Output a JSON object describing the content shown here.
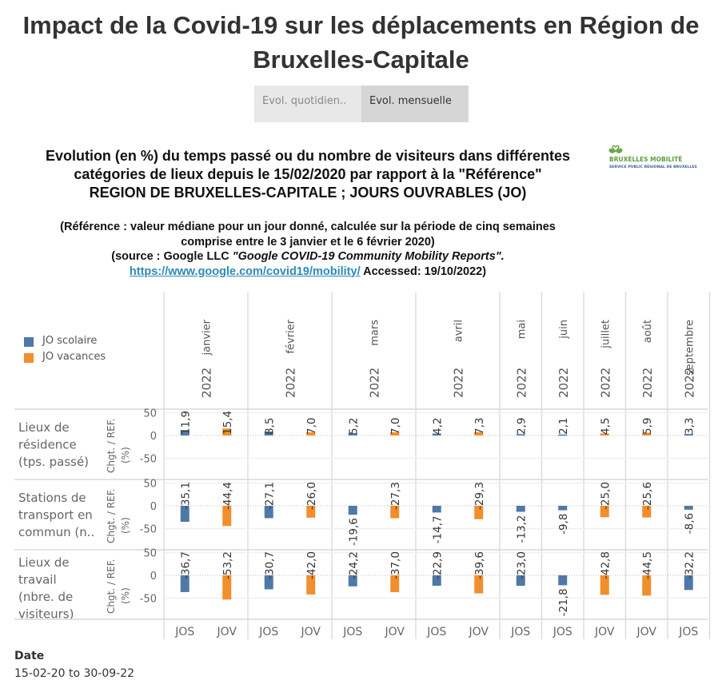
{
  "title": "Impact de la Covid-19 sur les déplacements en Région de Bruxelles-Capitale",
  "toggle": {
    "options": [
      "Evol. quotidien..",
      "Evol. mensuelle"
    ],
    "selected": "Evol. mensuelle"
  },
  "subtitle": [
    "Evolution (en %) du temps passé ou du nombre de visiteurs dans différentes",
    "catégories de lieux depuis le 15/02/2020 par rapport à la \"Référence\"",
    "REGION DE BRUXELLES-CAPITALE ; JOURS OUVRABLES (JO)"
  ],
  "note": {
    "line1": "(Référence : valeur médiane pour un jour donné, calculée sur la période de cinq semaines",
    "line2": "comprise entre le 3 janvier et le 6 février 2020)",
    "line3_prefix": "(source : Google LLC ",
    "line3_italic": "\"Google COVID-19 Community Mobility Reports\".",
    "link": "https://www.google.com/covid19/mobility/",
    "accessed": " Accessed: 19/10/2022)"
  },
  "logo": {
    "name": "BRUXELLES MOBILITÉ",
    "tagline": "SERVICE PUBLIC RÉGIONAL DE BRUXELLES"
  },
  "filter": {
    "label": "Date",
    "value": "15-02-20 to 30-09-22"
  },
  "chart_data": {
    "type": "bar",
    "legend": [
      {
        "name": "JO scolaire",
        "code": "JOS",
        "color": "#4e79a7"
      },
      {
        "name": "JO vacances",
        "code": "JOV",
        "color": "#f28e2b"
      }
    ],
    "legend_position": "top-left",
    "year": "2022",
    "months": [
      {
        "month": "janvier",
        "cols": [
          "JOS",
          "JOV"
        ]
      },
      {
        "month": "février",
        "cols": [
          "JOS",
          "JOV"
        ]
      },
      {
        "month": "mars",
        "cols": [
          "JOS",
          "JOV"
        ]
      },
      {
        "month": "avril",
        "cols": [
          "JOS",
          "JOV"
        ]
      },
      {
        "month": "mai",
        "cols": [
          "JOS"
        ]
      },
      {
        "month": "juin",
        "cols": [
          "JOS"
        ]
      },
      {
        "month": "juillet",
        "cols": [
          "JOV"
        ]
      },
      {
        "month": "août",
        "cols": [
          "JOV"
        ]
      },
      {
        "month": "septembre",
        "cols": [
          "JOS"
        ]
      }
    ],
    "ylabel": "Chgt. / REF. (%)",
    "yticks": [
      50,
      0,
      -50
    ],
    "rows": [
      {
        "label": [
          "Lieux de",
          "résidence",
          "(tps. passé)"
        ],
        "values": [
          11.9,
          15.4,
          8.5,
          7.0,
          5.2,
          7.0,
          4.2,
          7.3,
          2.9,
          2.1,
          4.5,
          5.9,
          3.3
        ],
        "labels": [
          "11,9",
          "15,4",
          "8,5",
          "7,0",
          "5,2",
          "7,0",
          "4,2",
          "7,3",
          "2,9",
          "2,1",
          "4,5",
          "5,9",
          "3,3"
        ]
      },
      {
        "label": [
          "Stations de",
          "transport en",
          "commun (n.."
        ],
        "values": [
          -35.1,
          -44.4,
          -27.1,
          -26.0,
          -19.6,
          -27.3,
          -14.7,
          -29.3,
          -13.2,
          -9.8,
          -25.0,
          -25.6,
          -8.6
        ],
        "labels": [
          "-35,1",
          "-44,4",
          "-27,1",
          "-26,0",
          "-19,6",
          "-27,3",
          "-14,7",
          "-29,3",
          "-13,2",
          "-9,8",
          "-25,0",
          "-25,6",
          "-8,6"
        ]
      },
      {
        "label": [
          "Lieux de",
          "travail",
          "(nbre. de",
          "visiteurs)"
        ],
        "values": [
          -36.7,
          -53.2,
          -30.7,
          -42.0,
          -24.2,
          -37.0,
          -22.9,
          -39.6,
          -23.0,
          -21.8,
          -42.8,
          -44.5,
          -32.2
        ],
        "labels": [
          "-36,7",
          "-53,2",
          "-30,7",
          "-42,0",
          "-24,2",
          "-37,0",
          "-22,9",
          "-39,6",
          "-23,0",
          "-21,8",
          "-42,8",
          "-44,5",
          "-32,2"
        ]
      }
    ]
  }
}
